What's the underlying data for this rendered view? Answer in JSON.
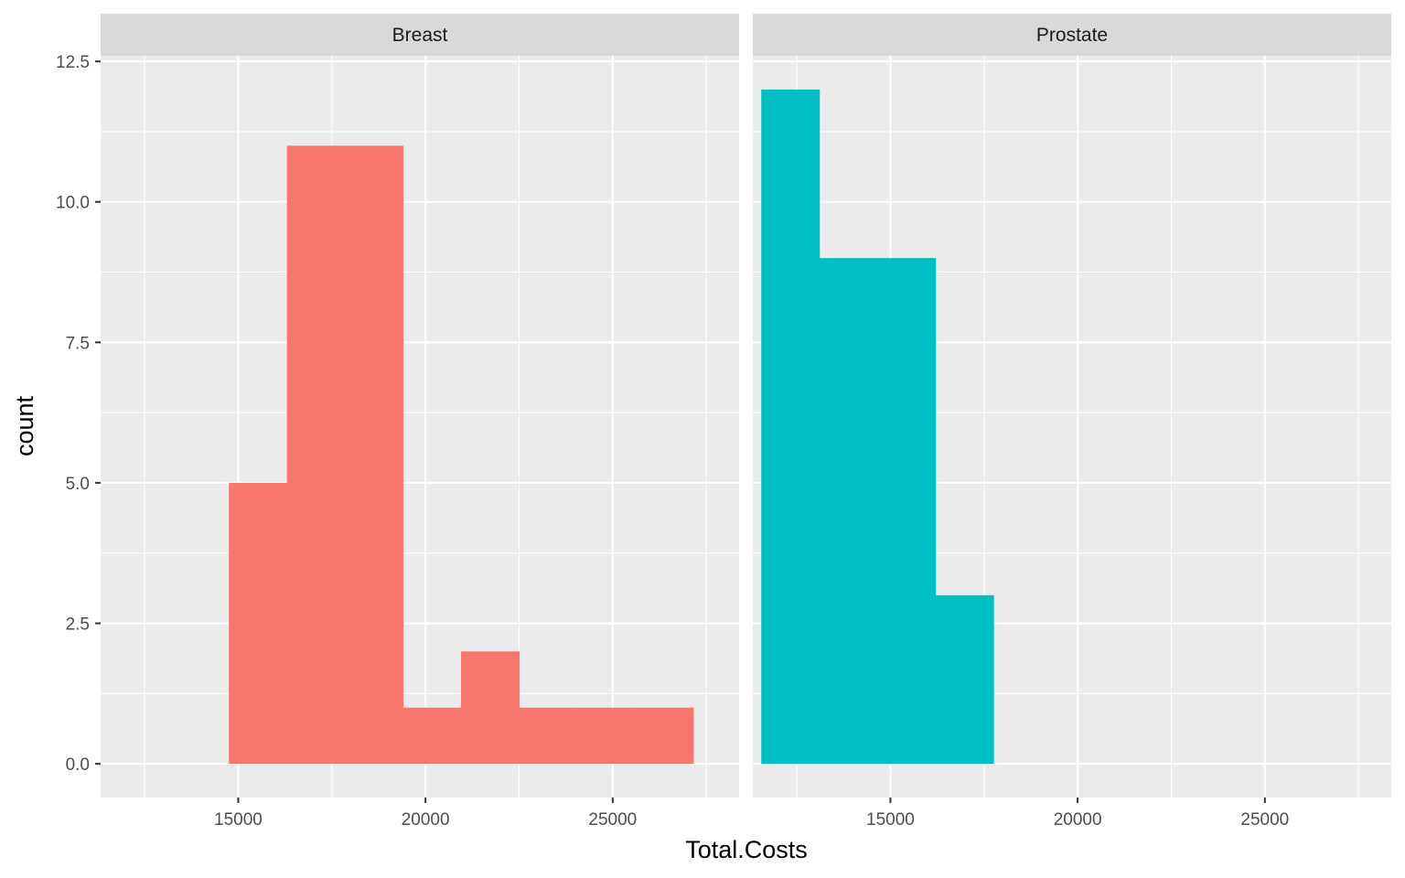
{
  "chart_data": {
    "type": "bar",
    "chart_type_detail": "faceted-histogram",
    "xlabel": "Total.Costs",
    "ylabel": "count",
    "y_range": [
      -0.6,
      12.6
    ],
    "y_ticks": [
      0.0,
      2.5,
      5.0,
      7.5,
      10.0,
      12.5
    ],
    "y_tick_labels": [
      "0.0",
      "2.5",
      "5.0",
      "7.5",
      "10.0",
      "12.5"
    ],
    "grid": true,
    "legend": "none",
    "panels": [
      {
        "name": "Breast",
        "color": "#F8766D",
        "x_range": [
          11325,
          28375
        ],
        "x_ticks": [
          15000,
          20000,
          25000
        ],
        "x_tick_labels": [
          "15000",
          "20000",
          "25000"
        ],
        "bins": [
          {
            "x0": 14750,
            "x1": 16300,
            "count": 5
          },
          {
            "x0": 16300,
            "x1": 17850,
            "count": 11
          },
          {
            "x0": 17850,
            "x1": 19400,
            "count": 11
          },
          {
            "x0": 19400,
            "x1": 20950,
            "count": 1
          },
          {
            "x0": 20950,
            "x1": 22500,
            "count": 2
          },
          {
            "x0": 22500,
            "x1": 24050,
            "count": 1
          },
          {
            "x0": 24050,
            "x1": 25600,
            "count": 1
          },
          {
            "x0": 25600,
            "x1": 27150,
            "count": 1
          }
        ]
      },
      {
        "name": "Prostate",
        "color": "#00BFC4",
        "x_range": [
          11325,
          28375
        ],
        "x_ticks": [
          15000,
          20000,
          25000
        ],
        "x_tick_labels": [
          "15000",
          "20000",
          "25000"
        ],
        "bins": [
          {
            "x0": 11550,
            "x1": 13100,
            "count": 12
          },
          {
            "x0": 13100,
            "x1": 14650,
            "count": 9
          },
          {
            "x0": 14650,
            "x1": 16200,
            "count": 9
          },
          {
            "x0": 16200,
            "x1": 17750,
            "count": 3
          }
        ]
      }
    ]
  }
}
